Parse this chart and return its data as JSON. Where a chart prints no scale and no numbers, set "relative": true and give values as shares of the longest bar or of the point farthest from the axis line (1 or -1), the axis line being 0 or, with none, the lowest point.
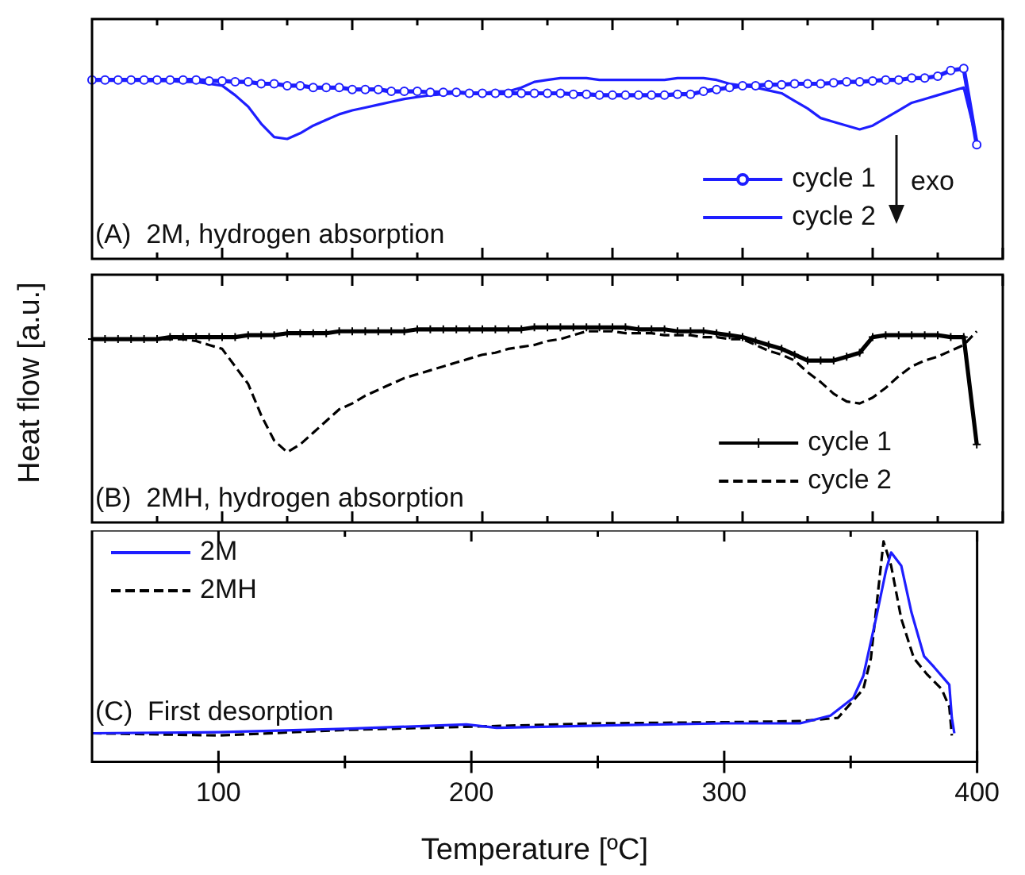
{
  "chart_data": [
    {
      "type": "line",
      "title": "(A)  2M, hydrogen absorption",
      "relative": true,
      "categories": [
        null,
        null,
        null,
        null,
        null,
        null,
        null,
        null,
        null,
        null,
        null,
        null,
        null,
        null,
        null,
        null,
        null,
        null,
        null,
        null,
        null,
        null,
        null,
        null,
        null,
        null,
        null,
        null,
        null,
        null,
        null,
        null,
        null,
        null,
        null,
        null,
        null,
        null,
        null,
        null,
        null,
        null,
        null,
        null,
        null,
        null,
        null,
        null,
        null,
        null,
        null,
        null,
        null,
        null,
        null,
        null,
        null,
        null,
        null,
        null,
        null,
        null,
        null,
        null,
        null,
        null,
        null,
        null,
        null,
        null,
        null
      ],
      "tick_labels": false,
      "legend": "bottom right",
      "annotations": [
        "exo"
      ],
      "series": [
        {
          "name": "cycle 1",
          "color": "#1e1eff",
          "marker": "circle",
          "values": [
            0.94,
            0.94,
            0.94,
            0.94,
            0.94,
            0.94,
            0.94,
            0.94,
            0.94,
            0.935,
            0.935,
            0.93,
            0.93,
            0.92,
            0.92,
            0.91,
            0.91,
            0.9,
            0.9,
            0.9,
            0.89,
            0.89,
            0.89,
            0.88,
            0.88,
            0.88,
            0.875,
            0.875,
            0.875,
            0.87,
            0.87,
            0.87,
            0.87,
            0.87,
            0.87,
            0.87,
            0.87,
            0.865,
            0.865,
            0.86,
            0.86,
            0.86,
            0.86,
            0.86,
            0.86,
            0.865,
            0.865,
            0.88,
            0.89,
            0.9,
            0.91,
            0.91,
            0.915,
            0.915,
            0.92,
            0.92,
            0.92,
            0.925,
            0.93,
            0.93,
            0.935,
            0.94,
            0.94,
            0.95,
            0.95,
            0.96,
            0.99,
            1.0,
            0.6,
            null,
            null
          ]
        },
        {
          "name": "cycle 2",
          "color": "#1e1eff",
          "marker": "none",
          "values": [
            0.94,
            0.94,
            0.94,
            0.94,
            0.935,
            0.935,
            0.935,
            0.93,
            0.93,
            0.92,
            0.91,
            0.86,
            0.8,
            0.71,
            0.64,
            0.63,
            0.66,
            0.7,
            0.73,
            0.76,
            0.78,
            0.795,
            0.81,
            0.825,
            0.84,
            0.85,
            0.86,
            0.865,
            0.87,
            0.87,
            0.87,
            0.88,
            0.88,
            0.9,
            0.93,
            0.94,
            0.95,
            0.95,
            0.95,
            0.94,
            0.94,
            0.94,
            0.94,
            0.94,
            0.94,
            0.95,
            0.95,
            0.95,
            0.94,
            0.92,
            0.91,
            0.9,
            0.885,
            0.87,
            0.83,
            0.79,
            0.74,
            0.72,
            0.7,
            0.68,
            0.7,
            0.74,
            0.78,
            0.82,
            0.84,
            0.86,
            0.88,
            0.9,
            0.62,
            null,
            null
          ]
        }
      ]
    },
    {
      "type": "line",
      "title": "(B)  2MH, hydrogen absorption",
      "ylabel": "Heat flow [a.u.]",
      "relative": true,
      "categories": [
        null,
        null,
        null,
        null,
        null,
        null,
        null,
        null,
        null,
        null,
        null,
        null,
        null,
        null,
        null,
        null,
        null,
        null,
        null,
        null,
        null,
        null,
        null,
        null,
        null,
        null,
        null,
        null,
        null,
        null,
        null,
        null,
        null,
        null,
        null,
        null,
        null,
        null,
        null,
        null,
        null,
        null,
        null,
        null,
        null,
        null,
        null,
        null,
        null,
        null,
        null,
        null,
        null,
        null,
        null,
        null,
        null,
        null,
        null,
        null,
        null,
        null,
        null,
        null,
        null,
        null,
        null,
        null,
        null,
        null,
        null
      ],
      "tick_labels": false,
      "legend": "bottom right",
      "series": [
        {
          "name": "cycle 1",
          "color": "#000000",
          "marker": "cross",
          "values": [
            0.94,
            0.94,
            0.94,
            0.94,
            0.94,
            0.94,
            0.95,
            0.95,
            0.95,
            0.95,
            0.95,
            0.95,
            0.96,
            0.96,
            0.96,
            0.97,
            0.97,
            0.97,
            0.97,
            0.98,
            0.98,
            0.98,
            0.98,
            0.98,
            0.98,
            0.99,
            0.99,
            0.99,
            0.99,
            0.99,
            0.99,
            0.99,
            0.99,
            0.99,
            1.0,
            1.0,
            1.0,
            1.0,
            1.0,
            1.0,
            1.0,
            1.0,
            0.99,
            0.99,
            0.99,
            0.98,
            0.98,
            0.98,
            0.97,
            0.96,
            0.95,
            0.93,
            0.91,
            0.89,
            0.86,
            0.83,
            0.83,
            0.83,
            0.85,
            0.87,
            0.95,
            0.96,
            0.96,
            0.96,
            0.96,
            0.96,
            0.95,
            0.95,
            0.4,
            null,
            null
          ]
        },
        {
          "name": "cycle 2",
          "color": "#000000",
          "marker": "none",
          "line_style": "dashed",
          "values": [
            0.94,
            0.94,
            0.94,
            0.94,
            0.94,
            0.94,
            0.94,
            0.94,
            0.93,
            0.91,
            0.89,
            0.8,
            0.71,
            0.55,
            0.42,
            0.36,
            0.4,
            0.46,
            0.52,
            0.58,
            0.61,
            0.65,
            0.68,
            0.71,
            0.74,
            0.76,
            0.78,
            0.8,
            0.82,
            0.84,
            0.86,
            0.87,
            0.89,
            0.9,
            0.91,
            0.93,
            0.94,
            0.96,
            0.98,
            0.98,
            0.98,
            0.97,
            0.97,
            0.97,
            0.96,
            0.96,
            0.96,
            0.95,
            0.95,
            0.94,
            0.94,
            0.91,
            0.88,
            0.86,
            0.83,
            0.77,
            0.72,
            0.66,
            0.62,
            0.61,
            0.64,
            0.69,
            0.75,
            0.8,
            0.83,
            0.85,
            0.88,
            0.91,
            0.98,
            null,
            null
          ]
        }
      ]
    },
    {
      "type": "line",
      "title": "(C)  First desorption",
      "xlabel": "Temperature [ºC]",
      "relative": true,
      "xlim": [
        50,
        400
      ],
      "xticks": [
        100,
        {
          "value": 150,
          "label": null
        },
        200,
        {
          "value": 250,
          "label": null
        },
        300,
        {
          "value": 350,
          "label": null
        },
        400
      ],
      "tick_labels": "x",
      "legend": "top left",
      "series": [
        {
          "name": "2M",
          "color": "#1e1eff",
          "marker": "none",
          "x": [
            50,
            100,
            150,
            198,
            210,
            250,
            300,
            330,
            342,
            351,
            355,
            360,
            364,
            366,
            370,
            374,
            379,
            383,
            389,
            390,
            391
          ],
          "values": [
            0.13,
            0.135,
            0.15,
            0.17,
            0.155,
            0.165,
            0.175,
            0.175,
            0.21,
            0.29,
            0.39,
            0.65,
            0.87,
            0.95,
            0.89,
            0.68,
            0.48,
            0.43,
            0.35,
            0.2,
            0.13
          ]
        },
        {
          "name": "2MH",
          "color": "#000000",
          "marker": "none",
          "line_style": "dashed",
          "x": [
            50,
            100,
            150,
            200,
            250,
            300,
            330,
            345,
            355,
            358,
            361,
            363,
            366,
            370,
            375,
            380,
            386,
            389,
            390
          ],
          "values": [
            0.13,
            0.12,
            0.145,
            0.16,
            0.175,
            0.18,
            0.185,
            0.2,
            0.33,
            0.47,
            0.79,
            1.0,
            0.89,
            0.65,
            0.47,
            0.4,
            0.33,
            0.25,
            0.12
          ]
        }
      ]
    }
  ]
}
